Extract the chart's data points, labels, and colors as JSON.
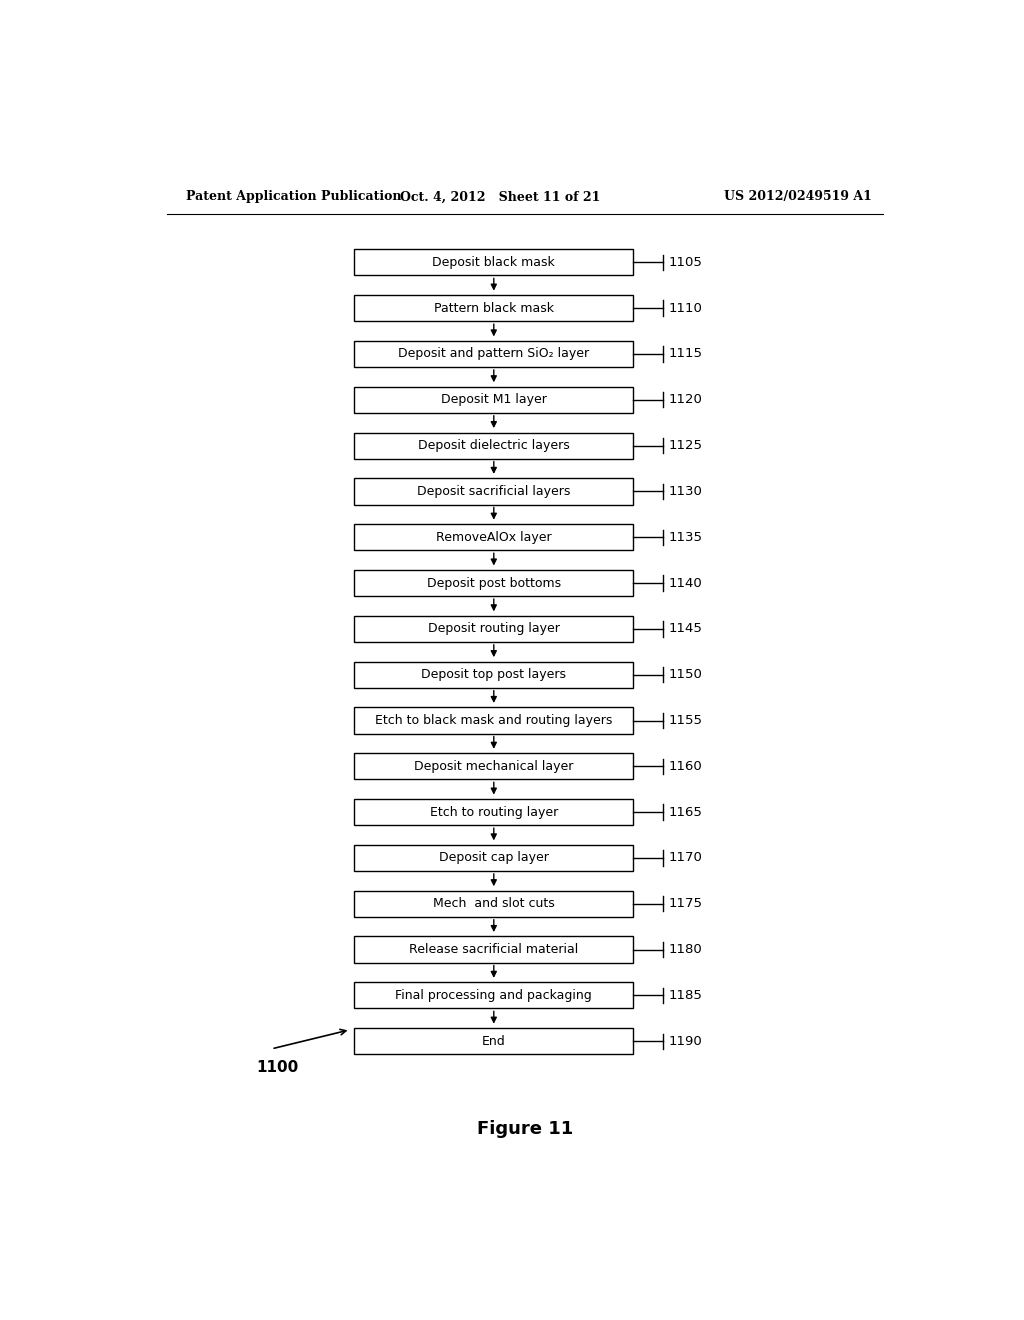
{
  "header_left": "Patent Application Publication",
  "header_mid": "Oct. 4, 2012   Sheet 11 of 21",
  "header_right": "US 2012/0249519 A1",
  "figure_label": "Figure 11",
  "diagram_label": "1100",
  "steps": [
    {
      "label": "Deposit black mask",
      "ref": "1105"
    },
    {
      "label": "Pattern black mask",
      "ref": "1110"
    },
    {
      "label": "Deposit and pattern SiO₂ layer",
      "ref": "1115"
    },
    {
      "label": "Deposit M1 layer",
      "ref": "1120"
    },
    {
      "label": "Deposit dielectric layers",
      "ref": "1125"
    },
    {
      "label": "Deposit sacrificial layers",
      "ref": "1130"
    },
    {
      "label": "RemoveAlOx layer",
      "ref": "1135"
    },
    {
      "label": "Deposit post bottoms",
      "ref": "1140"
    },
    {
      "label": "Deposit routing layer",
      "ref": "1145"
    },
    {
      "label": "Deposit top post layers",
      "ref": "1150"
    },
    {
      "label": "Etch to black mask and routing layers",
      "ref": "1155"
    },
    {
      "label": "Deposit mechanical layer",
      "ref": "1160"
    },
    {
      "label": "Etch to routing layer",
      "ref": "1165"
    },
    {
      "label": "Deposit cap layer",
      "ref": "1170"
    },
    {
      "label": "Mech  and slot cuts",
      "ref": "1175"
    },
    {
      "label": "Release sacrificial material",
      "ref": "1180"
    },
    {
      "label": "Final processing and packaging",
      "ref": "1185"
    },
    {
      "label": "End",
      "ref": "1190"
    }
  ],
  "background_color": "#ffffff",
  "box_edge_color": "#000000",
  "text_color": "#000000",
  "font_size": 9.0,
  "ref_font_size": 9.5,
  "header_font_size": 9.0,
  "figure_font_size": 13
}
